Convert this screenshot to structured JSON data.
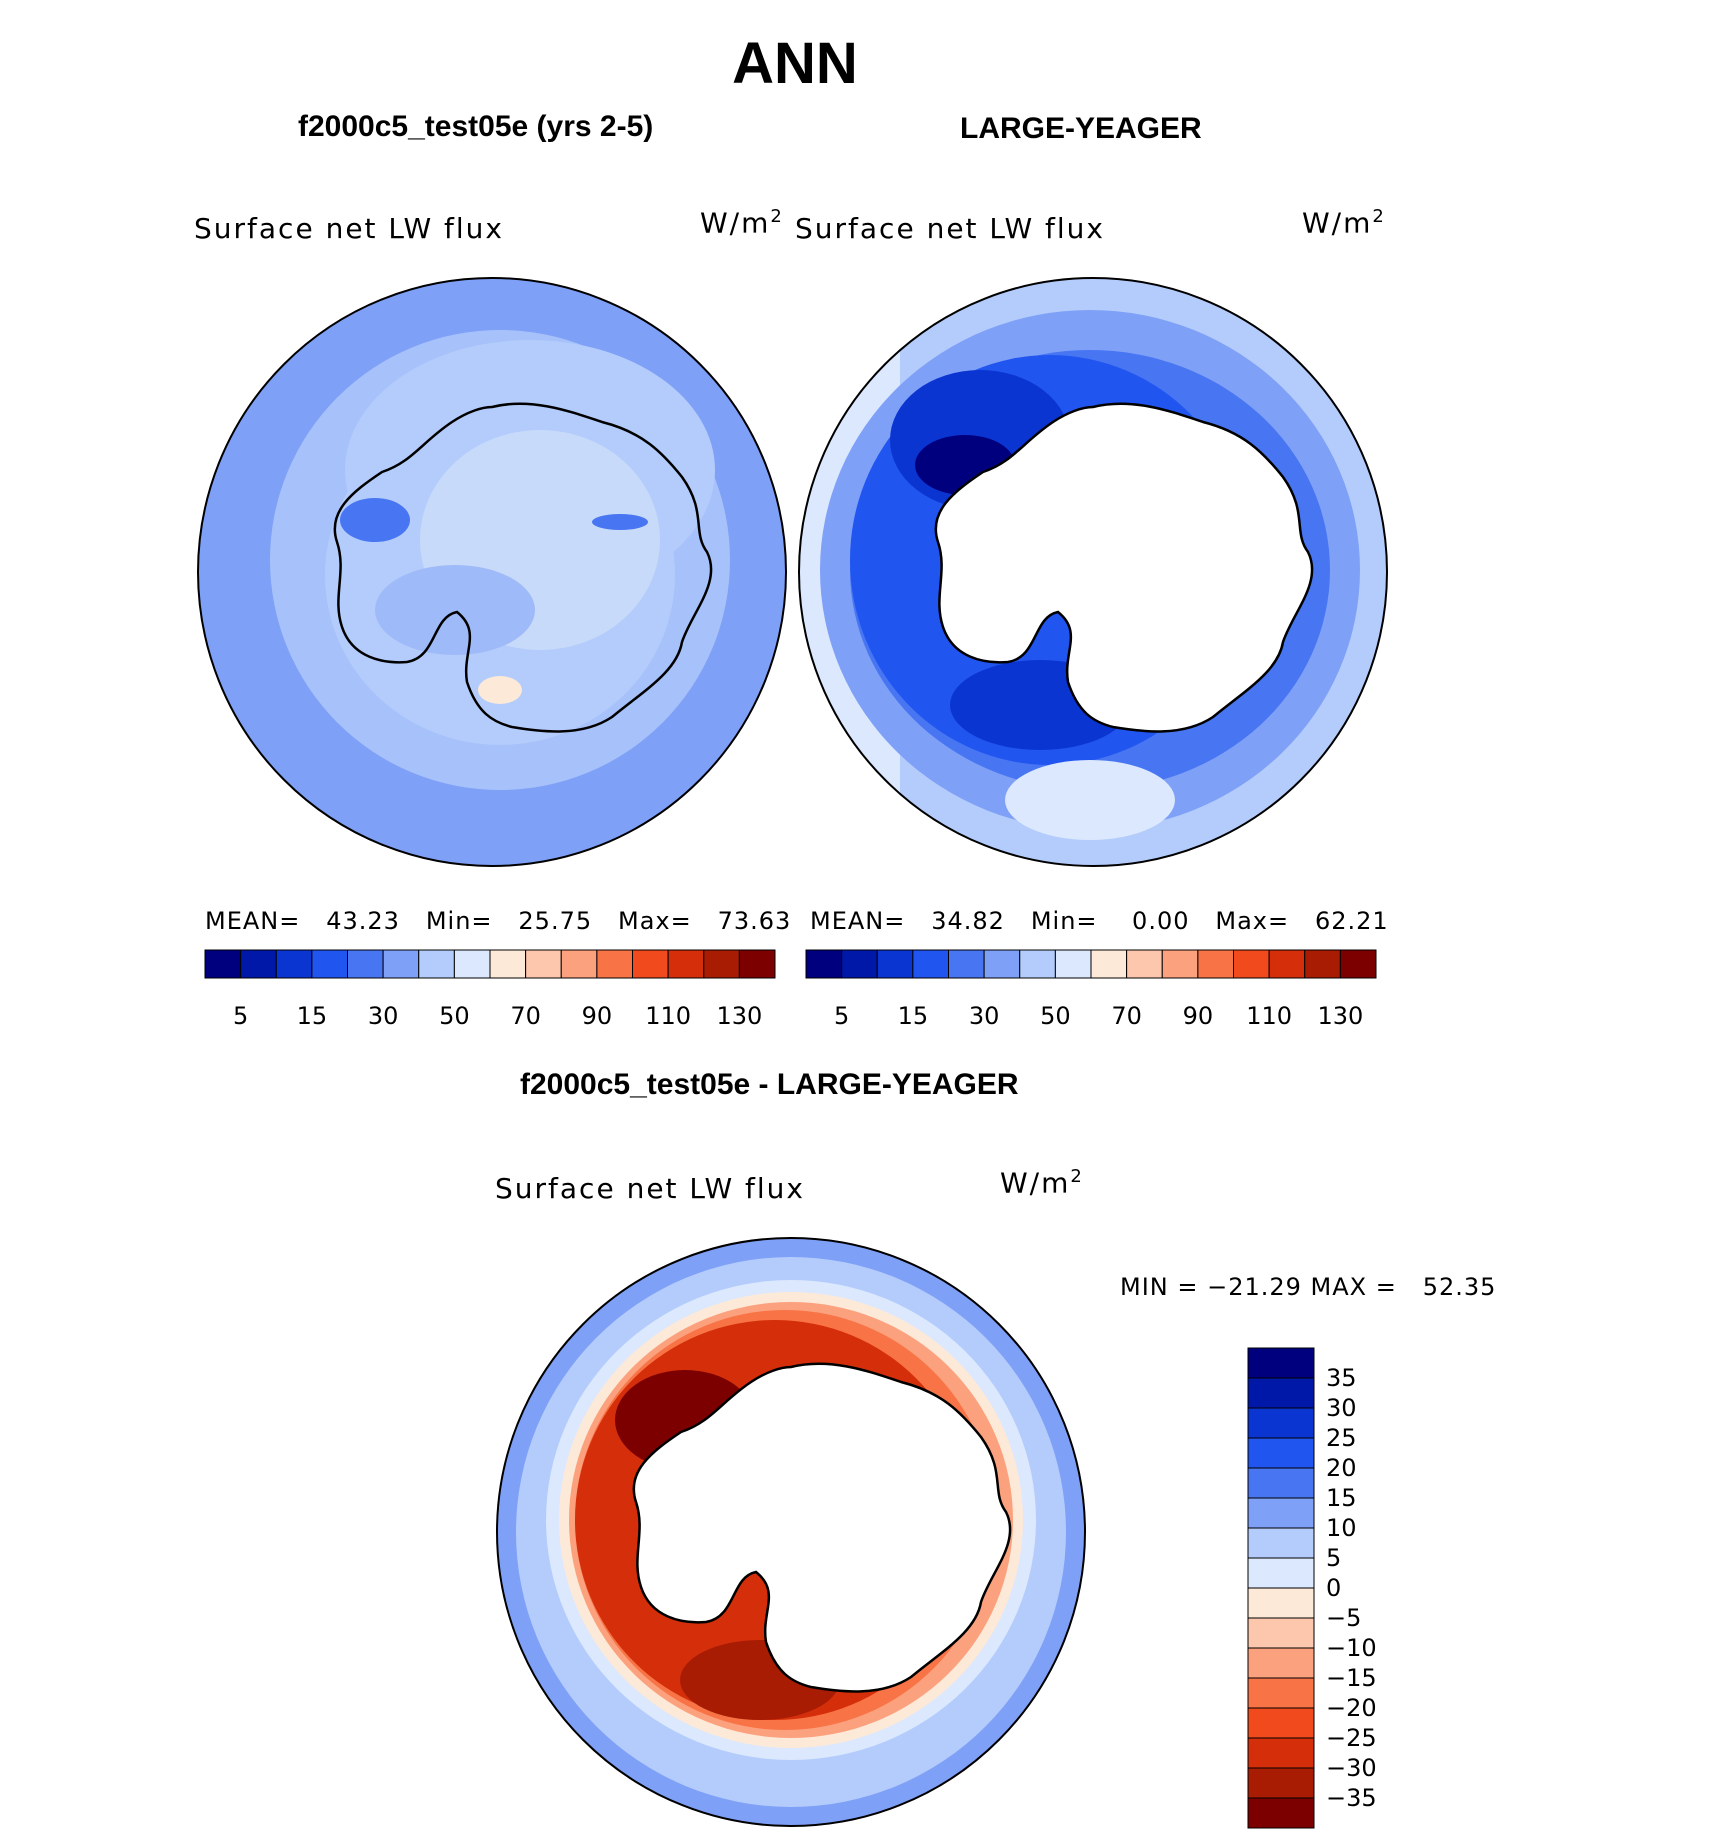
{
  "title": "ANN",
  "units_base": "W/m",
  "units_exp": "2",
  "panels": [
    {
      "title": "f2000c5_test05e (yrs 2-5)",
      "field": "Surface net LW flux",
      "stats": "MEAN=   43.23   Min=   25.75   Max=   73.63"
    },
    {
      "title": "LARGE-YEAGER",
      "field": "Surface net LW flux",
      "stats": "MEAN=   34.82   Min=    0.00   Max=   62.21"
    },
    {
      "title": "f2000c5_test05e - LARGE-YEAGER",
      "field": "Surface net LW flux",
      "stats": "MIN = −21.29 MAX =   52.35"
    }
  ],
  "colorbar_main": {
    "colors": [
      "#00007f",
      "#0018a8",
      "#0a35d1",
      "#2155f0",
      "#4876f2",
      "#7fa0f7",
      "#b3ccfb",
      "#dbe8fd",
      "#fde9d8",
      "#fdc7ad",
      "#fca17d",
      "#f87447",
      "#f14a1d",
      "#d42f0a",
      "#a81c04",
      "#7d0000"
    ],
    "labels": [
      "5",
      "15",
      "30",
      "50",
      "70",
      "90",
      "110",
      "130"
    ]
  },
  "colorbar_diff": {
    "colors": [
      "#00007f",
      "#0018a8",
      "#0a35d1",
      "#2155f0",
      "#4876f2",
      "#7fa0f7",
      "#b3ccfb",
      "#dbe8fd",
      "#fde9d8",
      "#fdc7ad",
      "#fca17d",
      "#f87447",
      "#f14a1d",
      "#d42f0a",
      "#a81c04",
      "#7d0000"
    ],
    "labels": [
      "35",
      "30",
      "25",
      "20",
      "15",
      "10",
      "5",
      "0",
      "−5",
      "−10",
      "−15",
      "−20",
      "−25",
      "−30",
      "−35"
    ]
  }
}
